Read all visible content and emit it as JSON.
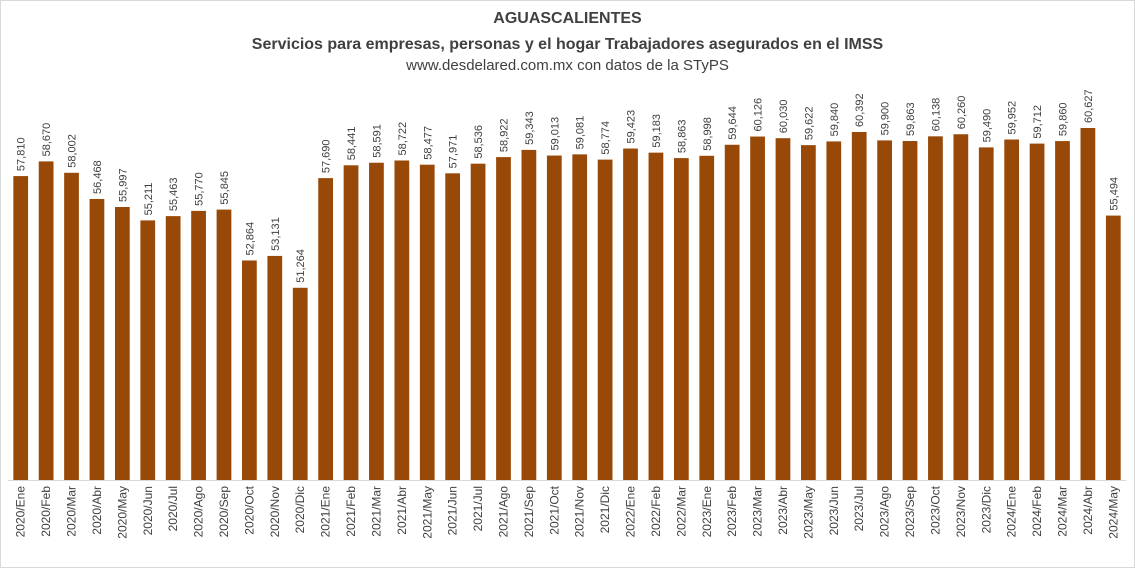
{
  "chart_data": {
    "type": "bar",
    "title": "AGUASCALIENTES",
    "subtitle": "Servicios para empresas, personas y el hogar Trabajadores asegurados en el IMSS",
    "source": "www.desdelared.com.mx con datos de la STyPS",
    "xlabel": "",
    "ylabel": "",
    "bar_color": "#984807",
    "ylim": [
      40000,
      62500
    ],
    "data_labels": true,
    "grid": false,
    "categories": [
      "2020/Ene",
      "2020/Feb",
      "2020/Mar",
      "2020/Abr",
      "2020/May",
      "2020/Jun",
      "2020/Jul",
      "2020/Ago",
      "2020/Sep",
      "2020/Oct",
      "2020/Nov",
      "2020/Dic",
      "2021/Ene",
      "2021/Feb",
      "2021/Mar",
      "2021/Abr",
      "2021/May",
      "2021/Jun",
      "2021/Jul",
      "2021/Ago",
      "2021/Sep",
      "2021/Oct",
      "2021/Nov",
      "2021/Dic",
      "2022/Ene",
      "2022/Feb",
      "2022/Mar",
      "2023/Ene",
      "2023/Feb",
      "2023/Mar",
      "2023/Abr",
      "2023/May",
      "2023/Jun",
      "2023/Jul",
      "2023/Ago",
      "2023/Sep",
      "2023/Oct",
      "2023/Nov",
      "2023/Dic",
      "2024/Ene",
      "2024/Feb",
      "2024/Mar",
      "2024/Abr",
      "2024/May"
    ],
    "values": [
      57810,
      58670,
      58002,
      56468,
      55997,
      55211,
      55463,
      55770,
      55845,
      52864,
      53131,
      51264,
      57690,
      58441,
      58591,
      58722,
      58477,
      57971,
      58536,
      58922,
      59343,
      59013,
      59081,
      58774,
      59423,
      59183,
      58863,
      58998,
      59644,
      60126,
      60030,
      59622,
      59840,
      60392,
      59900,
      59863,
      60138,
      60260,
      59490,
      59952,
      59712,
      59860,
      60627,
      55494
    ],
    "value_labels": [
      "57,810",
      "58,670",
      "58,002",
      "56,468",
      "55,997",
      "55,211",
      "55,463",
      "55,770",
      "55,845",
      "52,864",
      "53,131",
      "51,264",
      "57,690",
      "58,441",
      "58,591",
      "58,722",
      "58,477",
      "57,971",
      "58,536",
      "58,922",
      "59,343",
      "59,013",
      "59,081",
      "58,774",
      "59,423",
      "59,183",
      "58,863",
      "58,998",
      "59,644",
      "60,126",
      "60,030",
      "59,622",
      "59,840",
      "60,392",
      "59,900",
      "59,863",
      "60,138",
      "60,260",
      "59,490",
      "59,952",
      "59,712",
      "59,860",
      "60,627",
      "55,494"
    ]
  }
}
